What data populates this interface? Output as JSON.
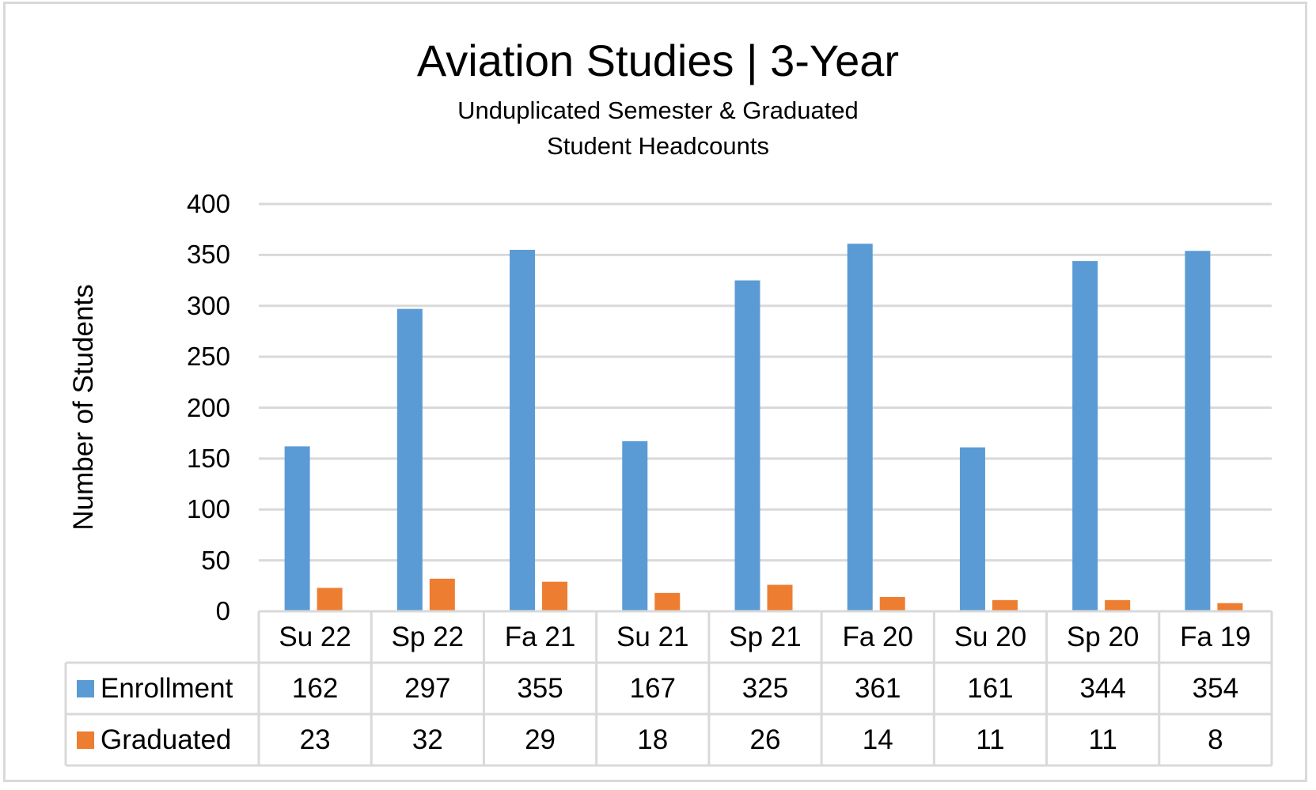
{
  "chart_data": {
    "type": "bar",
    "title": "Aviation Studies | 3-Year",
    "subtitle_lines": [
      "Unduplicated Semester & Graduated",
      "Student Headcounts"
    ],
    "xlabel": "",
    "ylabel": "Number of Students",
    "ylim": [
      0,
      400
    ],
    "yticks": [
      0,
      50,
      100,
      150,
      200,
      250,
      300,
      350,
      400
    ],
    "grid": true,
    "legend": "data-table",
    "categories": [
      "Su 22",
      "Sp 22",
      "Fa 21",
      "Su 21",
      "Sp 21",
      "Fa 20",
      "Su 20",
      "Sp 20",
      "Fa 19"
    ],
    "series": [
      {
        "name": "Enrollment",
        "color": "#5b9bd5",
        "values": [
          162,
          297,
          355,
          167,
          325,
          361,
          161,
          344,
          354
        ]
      },
      {
        "name": "Graduated",
        "color": "#ed7d31",
        "values": [
          23,
          32,
          29,
          18,
          26,
          14,
          11,
          11,
          8
        ]
      }
    ]
  },
  "colors": {
    "grid": "#d9d9d9",
    "border": "#d9d9d9"
  }
}
